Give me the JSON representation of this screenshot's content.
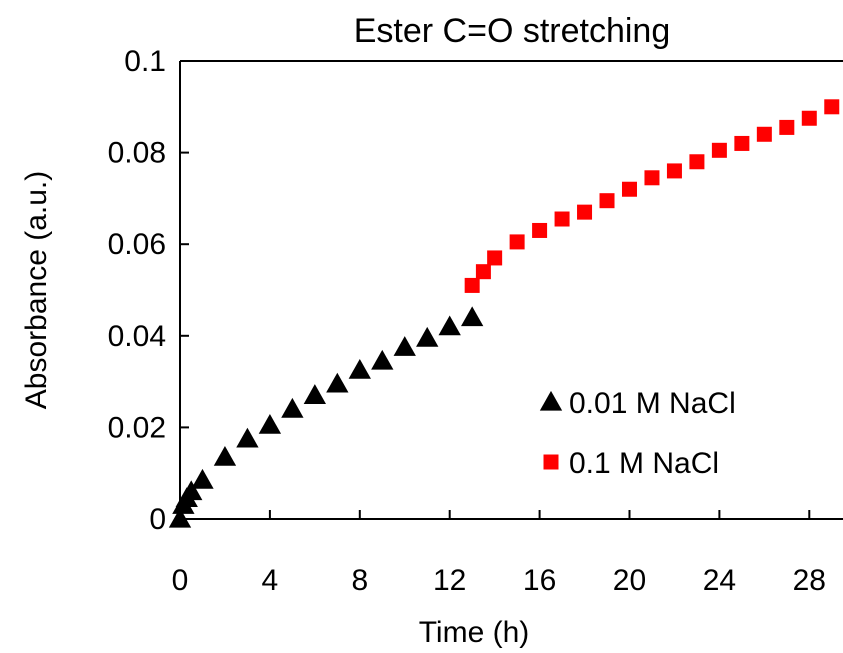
{
  "chart_data": {
    "type": "scatter",
    "title": "Ester C=O stretching",
    "xlabel": "Time (h)",
    "ylabel": "Absorbance (a.u.)",
    "xlim": [
      0,
      29.5
    ],
    "ylim": [
      0,
      0.1
    ],
    "x_ticks": [
      0,
      4,
      8,
      12,
      16,
      20,
      24,
      28
    ],
    "x_tick_labels": [
      "0",
      "4",
      "8",
      "12",
      "16",
      "20",
      "24",
      "28"
    ],
    "y_ticks": [
      0,
      0.02,
      0.04,
      0.06,
      0.08,
      0.1
    ],
    "y_tick_labels": [
      "0",
      "0.02",
      "0.04",
      "0.06",
      "0.08",
      "0.1"
    ],
    "grid": false,
    "legend_position": "bottom-right",
    "series": [
      {
        "name": "0.01 M NaCl",
        "marker": "triangle",
        "color": "#000000",
        "points": [
          [
            0,
            0
          ],
          [
            0.15,
            0.003
          ],
          [
            0.3,
            0.0045
          ],
          [
            0.5,
            0.006
          ],
          [
            1,
            0.0085
          ],
          [
            2,
            0.0135
          ],
          [
            3,
            0.0175
          ],
          [
            4,
            0.0205
          ],
          [
            5,
            0.024
          ],
          [
            6,
            0.027
          ],
          [
            7,
            0.0295
          ],
          [
            8,
            0.0325
          ],
          [
            9,
            0.0345
          ],
          [
            10,
            0.0375
          ],
          [
            11,
            0.0395
          ],
          [
            12,
            0.042
          ],
          [
            13,
            0.044
          ]
        ]
      },
      {
        "name": "0.1 M NaCl",
        "marker": "square",
        "color": "#ff0000",
        "points": [
          [
            13,
            0.051
          ],
          [
            13.5,
            0.054
          ],
          [
            14,
            0.057
          ],
          [
            15,
            0.0605
          ],
          [
            16,
            0.063
          ],
          [
            17,
            0.0655
          ],
          [
            18,
            0.067
          ],
          [
            19,
            0.0695
          ],
          [
            20,
            0.072
          ],
          [
            21,
            0.0745
          ],
          [
            22,
            0.076
          ],
          [
            23,
            0.078
          ],
          [
            24,
            0.0805
          ],
          [
            25,
            0.082
          ],
          [
            26,
            0.084
          ],
          [
            27,
            0.0855
          ],
          [
            28,
            0.0875
          ],
          [
            29,
            0.09
          ]
        ]
      }
    ]
  }
}
